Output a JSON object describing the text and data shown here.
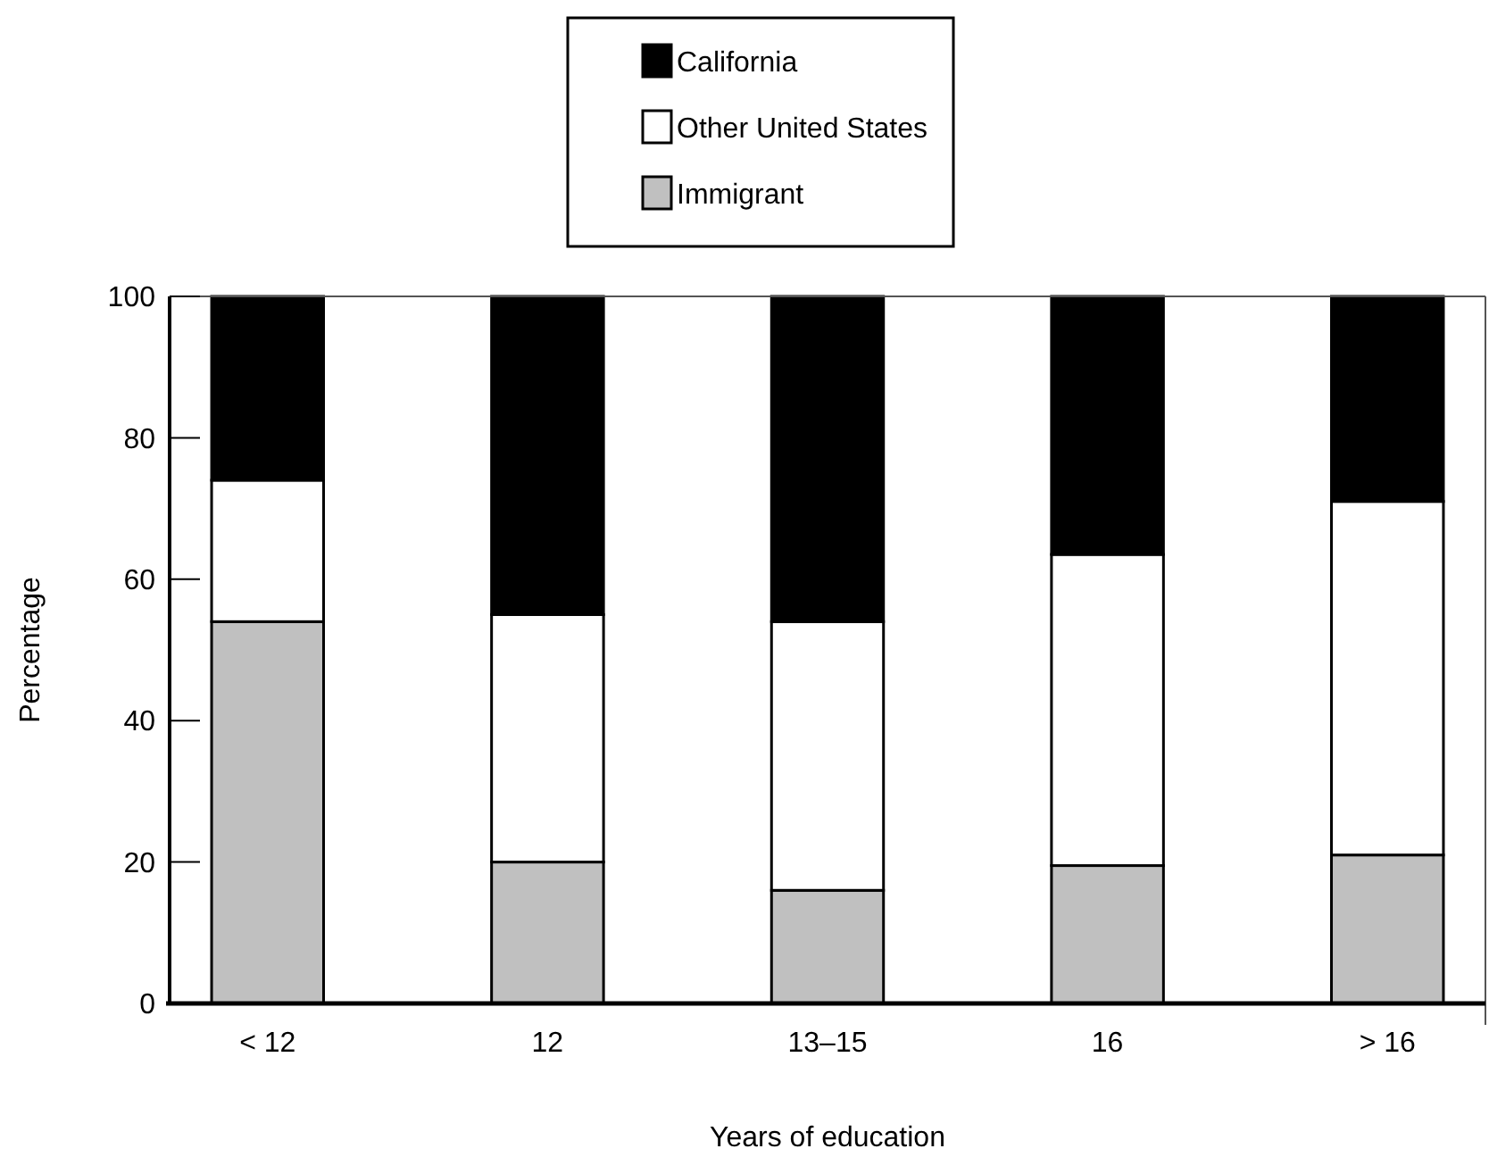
{
  "chart_data": {
    "type": "bar",
    "stacked": true,
    "xlabel": "Years of education",
    "ylabel": "Percentage",
    "categories": [
      "< 12",
      "12",
      "13–15",
      "16",
      "> 16"
    ],
    "series": [
      {
        "name": "Immigrant",
        "color": "#c0c0c0",
        "values": [
          54,
          20,
          16,
          19.5,
          21
        ]
      },
      {
        "name": "Other United States",
        "color": "#ffffff",
        "values": [
          20,
          35,
          38,
          44,
          50
        ]
      },
      {
        "name": "California",
        "color": "#000000",
        "values": [
          26,
          45,
          46,
          36.5,
          29
        ]
      }
    ],
    "ylim": [
      0,
      100
    ],
    "yticks": [
      0,
      20,
      40,
      60,
      80,
      100
    ],
    "grid": false,
    "legend": "top"
  }
}
